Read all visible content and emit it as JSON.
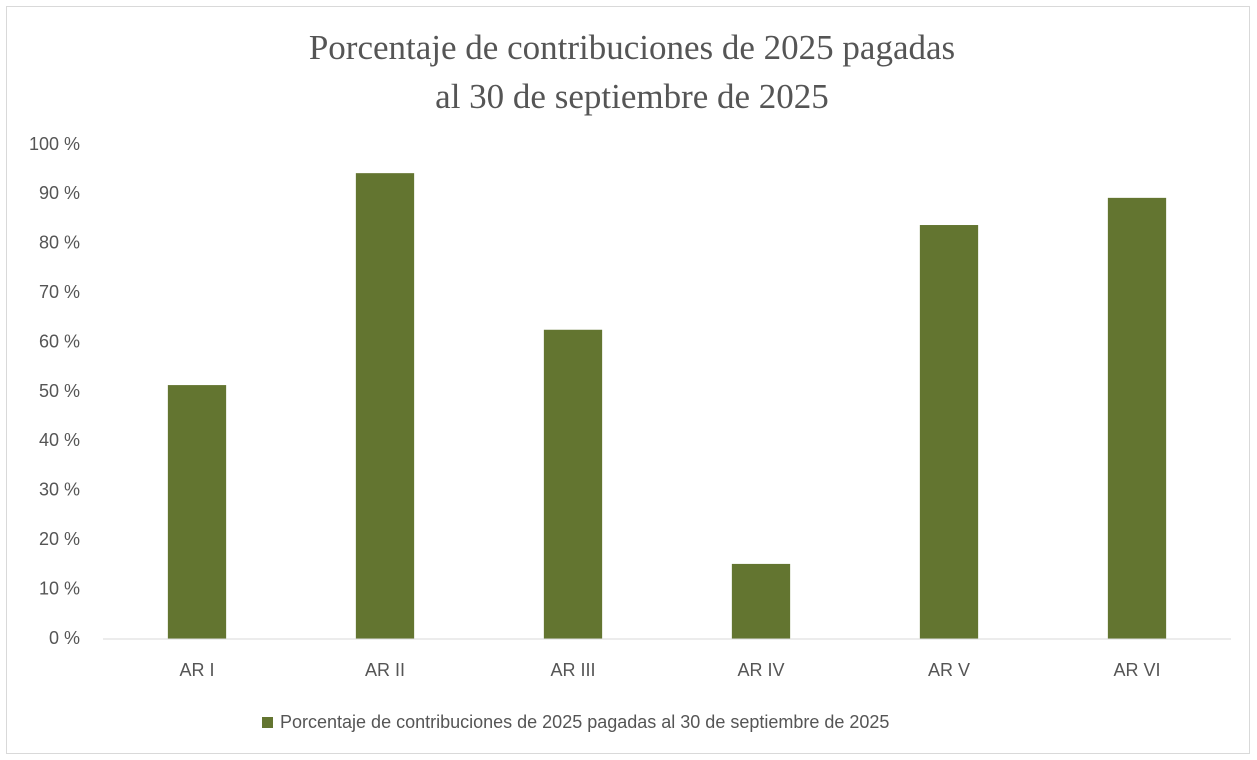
{
  "chart_data": {
    "type": "bar",
    "title": [
      "Porcentaje de contribuciones de 2025 pagadas",
      "al 30 de septiembre de 2025"
    ],
    "categories": [
      "AR I",
      "AR II",
      "AR III",
      "AR IV",
      "AR V",
      "AR VI"
    ],
    "series": [
      {
        "name": "Porcentaje de contribuciones de 2025 pagadas al 30 de septiembre de 2025",
        "color": "#637530",
        "values": [
          51.4,
          94.3,
          62.6,
          15.2,
          83.8,
          89.3
        ]
      }
    ],
    "ylim": [
      0,
      100
    ],
    "yticks": [
      {
        "value": 0,
        "label": "0 %"
      },
      {
        "value": 10,
        "label": "10 %"
      },
      {
        "value": 20,
        "label": "20 %"
      },
      {
        "value": 30,
        "label": "30 %"
      },
      {
        "value": 40,
        "label": "40 %"
      },
      {
        "value": 50,
        "label": "50 %"
      },
      {
        "value": 60,
        "label": "60 %"
      },
      {
        "value": 70,
        "label": "70 %"
      },
      {
        "value": 80,
        "label": "80 %"
      },
      {
        "value": 90,
        "label": "90 %"
      },
      {
        "value": 100,
        "label": "100 %"
      }
    ],
    "grid": false,
    "legend": "bottom"
  }
}
